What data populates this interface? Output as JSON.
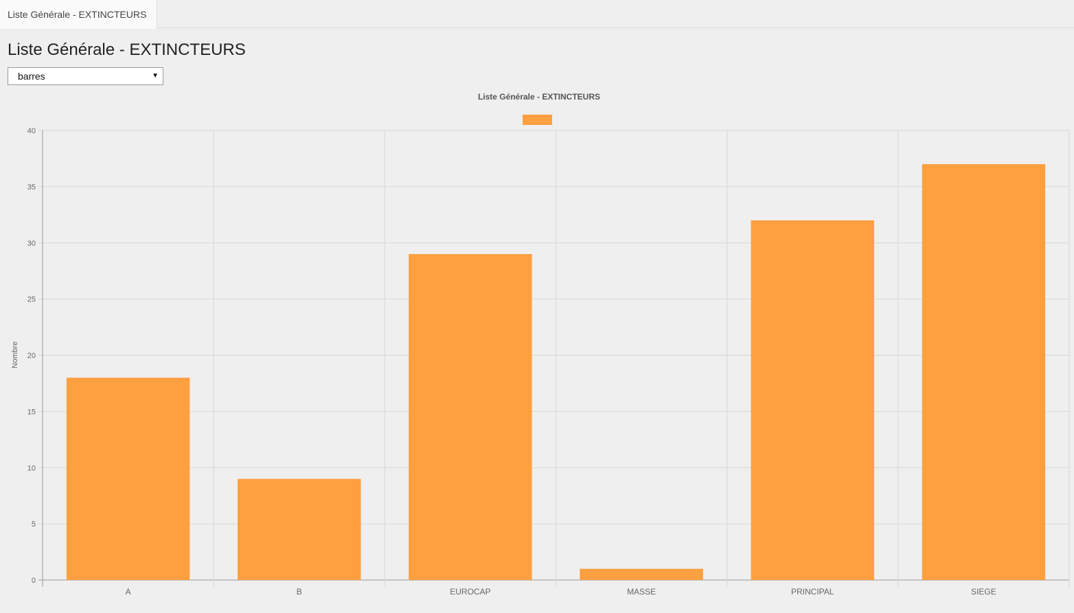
{
  "tab": {
    "label": "Liste Générale - EXTINCTEURS"
  },
  "page": {
    "title": "Liste Générale - EXTINCTEURS"
  },
  "chart_type_select": {
    "value": "barres"
  },
  "colors": {
    "bar": "#fe9f40",
    "grid": "#d6d6d6",
    "axis": "#999999"
  },
  "chart_data": {
    "type": "bar",
    "title": "Liste Générale - EXTINCTEURS",
    "xlabel": "",
    "ylabel": "Nombre",
    "categories": [
      "A",
      "B",
      "EUROCAP",
      "MASSE",
      "PRINCIPAL",
      "SIEGE"
    ],
    "series": [
      {
        "values": [
          18,
          9,
          29,
          1,
          32,
          37
        ]
      }
    ],
    "ylim": [
      0,
      40
    ],
    "yticks": [
      "0",
      "5",
      "10",
      "15",
      "20",
      "25",
      "30",
      "35",
      "40"
    ],
    "legend": "top",
    "grid": true
  }
}
